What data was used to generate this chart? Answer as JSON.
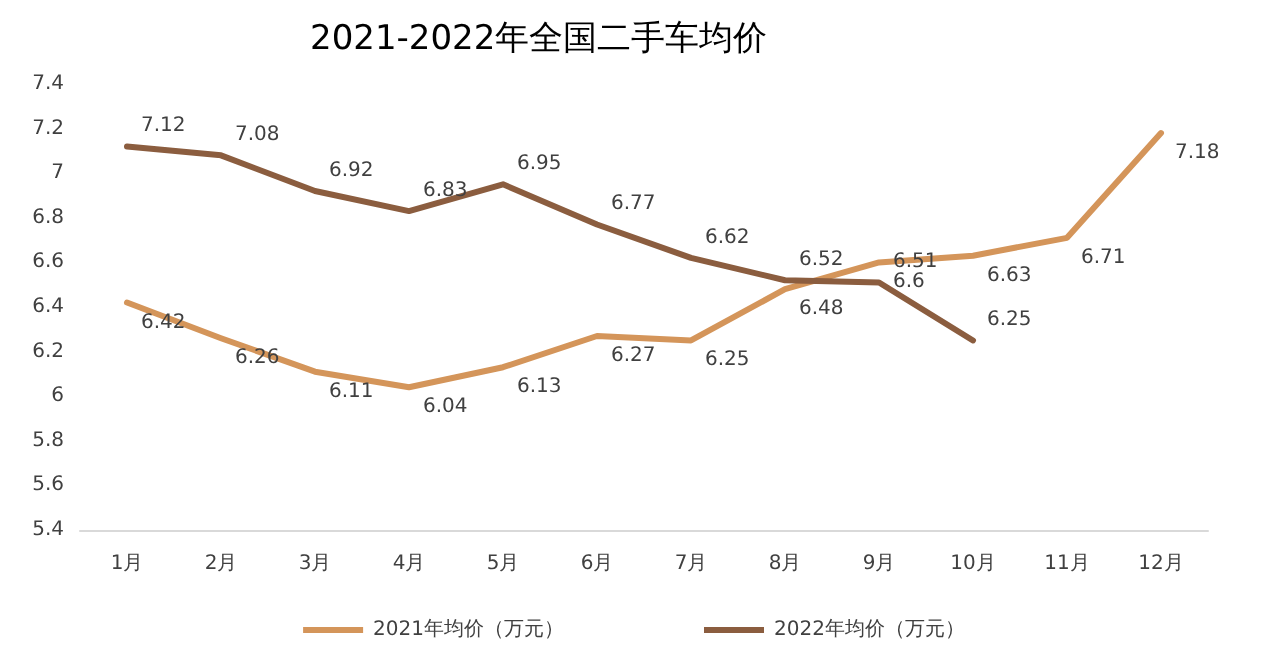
{
  "chart_data": {
    "type": "line",
    "title": "2021-2022年全国二手车均价",
    "categories": [
      "1月",
      "2月",
      "3月",
      "4月",
      "5月",
      "6月",
      "7月",
      "8月",
      "9月",
      "10月",
      "11月",
      "12月"
    ],
    "series": [
      {
        "name": "2021年均价（万元）",
        "color": "#d4955a",
        "values": [
          6.42,
          6.26,
          6.11,
          6.04,
          6.13,
          6.27,
          6.25,
          6.48,
          6.6,
          6.63,
          6.71,
          7.18
        ]
      },
      {
        "name": "2022年均价（万元）",
        "color": "#8b5d3f",
        "values": [
          7.12,
          7.08,
          6.92,
          6.83,
          6.95,
          6.77,
          6.62,
          6.52,
          6.51,
          6.25,
          null,
          null
        ]
      }
    ],
    "ylim": [
      5.4,
      7.4
    ],
    "yticks": [
      5.4,
      5.6,
      5.8,
      6,
      6.2,
      6.4,
      6.6,
      6.8,
      7,
      7.2,
      7.4
    ],
    "grid": false,
    "legend": "bottom",
    "marker": "none",
    "line_style": "solid",
    "data_labels": true
  }
}
